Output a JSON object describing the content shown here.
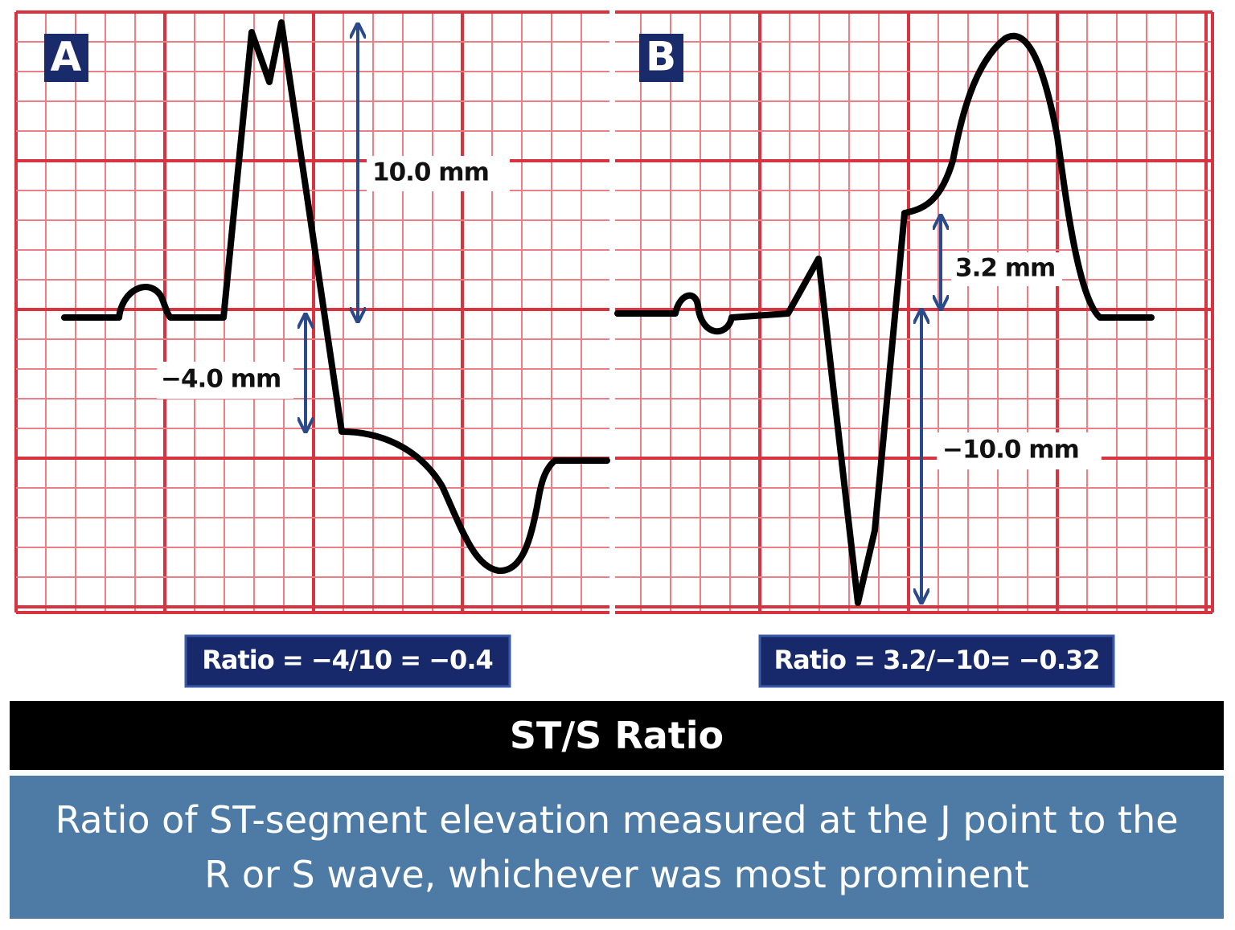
{
  "panels": [
    {
      "label": "A",
      "measurements": [
        "10.0 mm",
        "−4.0 mm"
      ],
      "ratio": "Ratio = −4/10 = −0.4"
    },
    {
      "label": "B",
      "measurements": [
        "3.2 mm",
        "−10.0 mm"
      ],
      "ratio": "Ratio = 3.2/−10= −0.32"
    }
  ],
  "title": "ST/S Ratio",
  "description": "Ratio of ST-segment elevation measured at the J point to the R or S wave, whichever was most prominent"
}
